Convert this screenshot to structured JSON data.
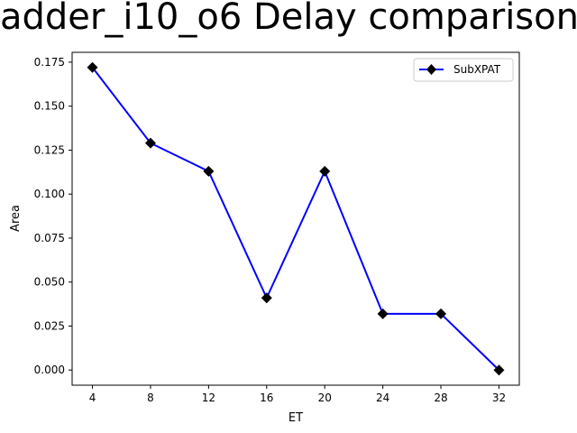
{
  "chart_data": {
    "type": "line",
    "title": "adder_i10_o6 Delay comparison",
    "xlabel": "ET",
    "ylabel": "Area",
    "x": [
      4,
      8,
      12,
      16,
      20,
      24,
      28,
      32
    ],
    "series": [
      {
        "name": "SubXPAT",
        "values": [
          0.172,
          0.129,
          0.113,
          0.041,
          0.113,
          0.032,
          0.032,
          0.0
        ],
        "color": "#0000ff",
        "marker": "diamond",
        "marker_color": "#000000"
      }
    ],
    "xlim": [
      2.6,
      33.4
    ],
    "ylim": [
      -0.0086,
      0.1806
    ],
    "xticks": [
      "4",
      "8",
      "12",
      "16",
      "20",
      "24",
      "28",
      "32"
    ],
    "yticks": [
      "0.000",
      "0.025",
      "0.050",
      "0.075",
      "0.100",
      "0.125",
      "0.150",
      "0.175"
    ],
    "grid": false,
    "legend": "top-right"
  }
}
